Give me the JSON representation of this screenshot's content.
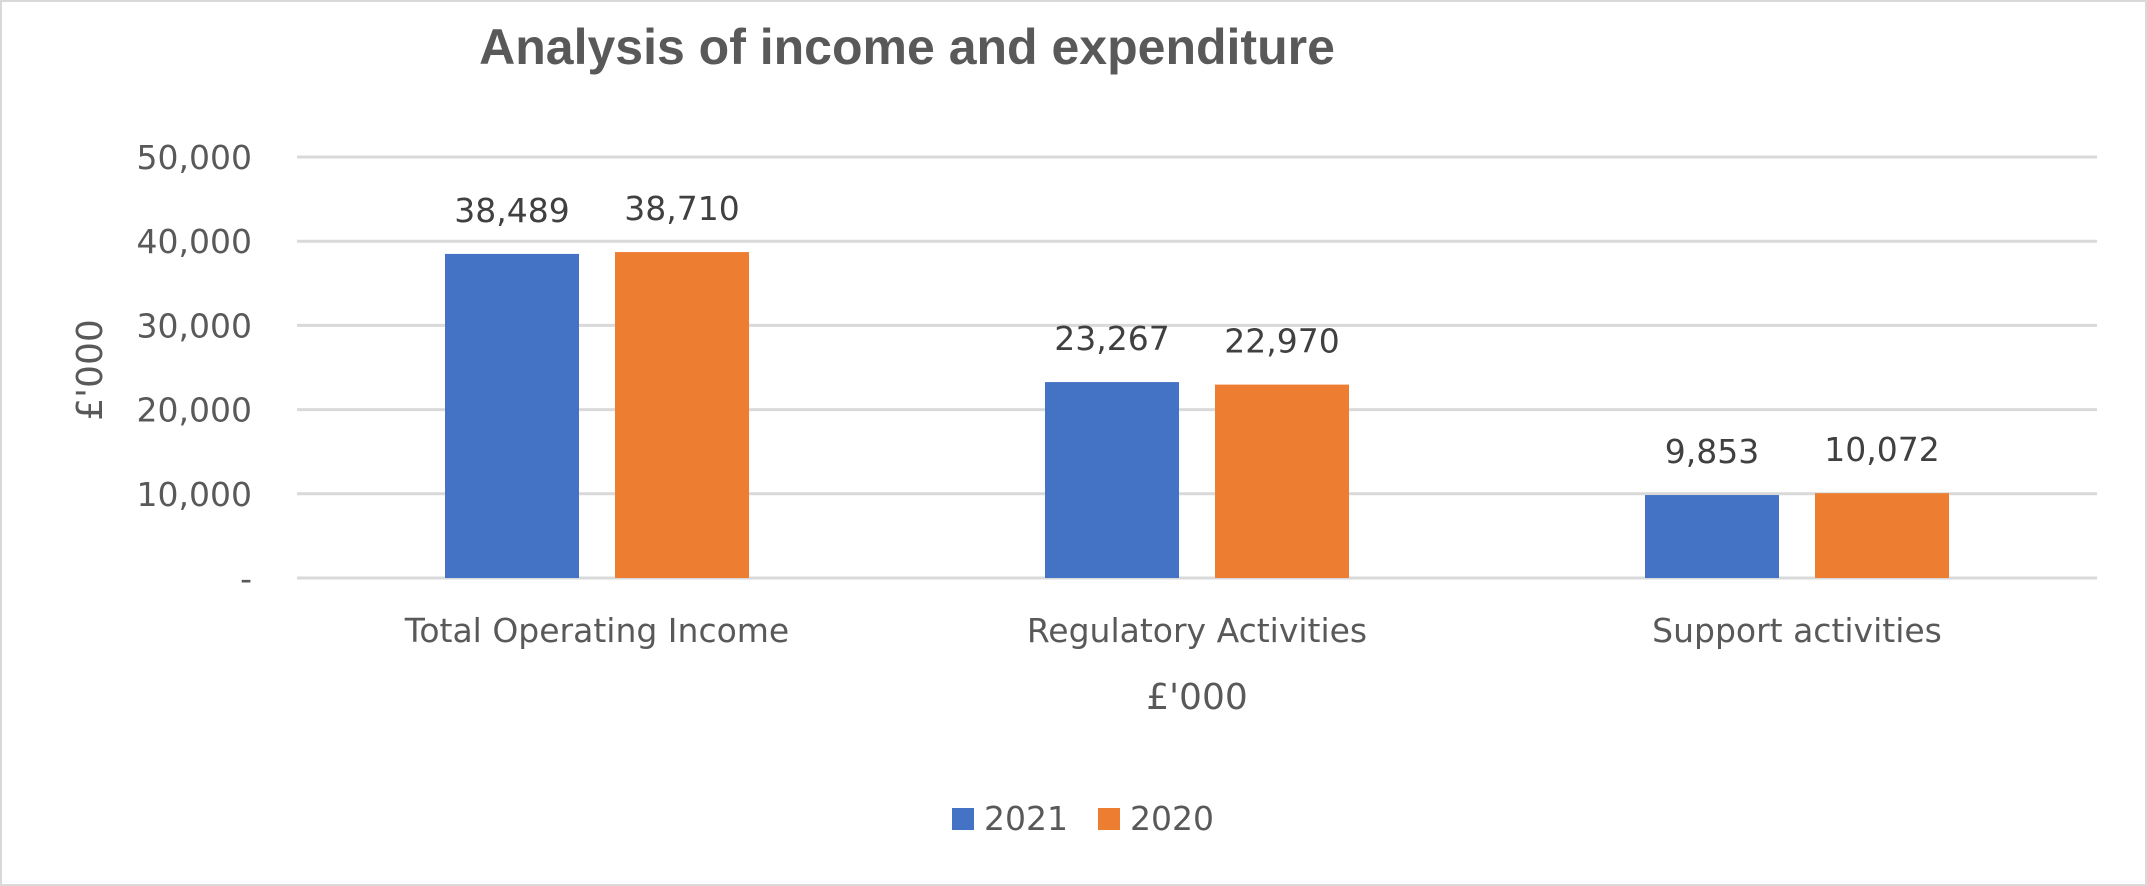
{
  "chart_data": {
    "type": "bar",
    "title": "Analysis of income and expenditure",
    "xlabel": "£'000",
    "ylabel": "£'000",
    "categories": [
      "Total Operating Income",
      "Regulatory Activities",
      "Support activities"
    ],
    "series": [
      {
        "name": "2021",
        "color": "#4472c4",
        "values": [
          38489,
          23267,
          9853
        ],
        "labels": [
          "38,489",
          "23,267",
          "9,853"
        ]
      },
      {
        "name": "2020",
        "color": "#ed7d31",
        "values": [
          38710,
          22970,
          10072
        ],
        "labels": [
          "38,710",
          "22,970",
          "10,072"
        ]
      }
    ],
    "ylim": [
      0,
      50000
    ],
    "yticks": [
      0,
      10000,
      20000,
      30000,
      40000,
      50000
    ],
    "ytick_labels": [
      "-",
      "10,000",
      "20,000",
      "30,000",
      "40,000",
      "50,000"
    ],
    "grid": true,
    "legend_position": "bottom"
  }
}
